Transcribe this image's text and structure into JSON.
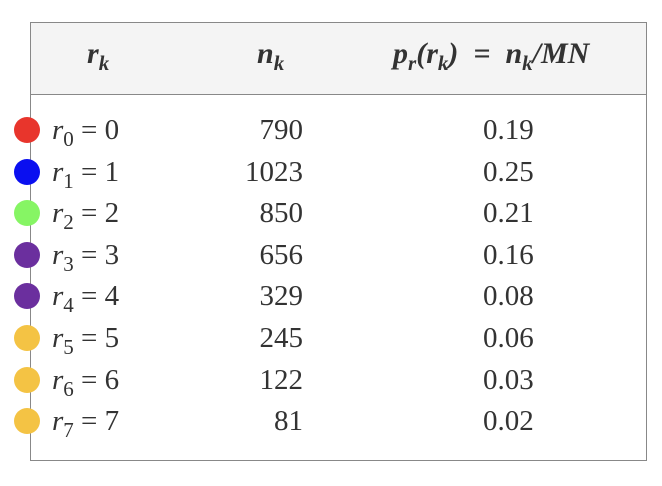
{
  "table": {
    "header": [
      [
        {
          "t": "r"
        },
        {
          "t": "k",
          "sub": true
        }
      ],
      [
        {
          "t": "n"
        },
        {
          "t": "k",
          "sub": true
        }
      ],
      [
        {
          "t": "p"
        },
        {
          "t": "r",
          "sub": true
        },
        {
          "t": "("
        },
        {
          "t": "r"
        },
        {
          "t": "k",
          "sub": true
        },
        {
          "t": ")  =  n"
        },
        {
          "t": "k",
          "sub": true
        },
        {
          "t": "/MN"
        }
      ]
    ],
    "rows": [
      {
        "color": "#e8352c",
        "symbol": "r",
        "index": "0",
        "relation": "=",
        "level": "0",
        "count": "790",
        "probability": "0.19"
      },
      {
        "color": "#0a0ff0",
        "symbol": "r",
        "index": "1",
        "relation": "=",
        "level": "1",
        "count": "1023",
        "probability": "0.25"
      },
      {
        "color": "#86f564",
        "symbol": "r",
        "index": "2",
        "relation": "=",
        "level": "2",
        "count": "850",
        "probability": "0.21"
      },
      {
        "color": "#6b2f9e",
        "symbol": "r",
        "index": "3",
        "relation": "=",
        "level": "3",
        "count": "656",
        "probability": "0.16"
      },
      {
        "color": "#6b2f9e",
        "symbol": "r",
        "index": "4",
        "relation": "=",
        "level": "4",
        "count": "329",
        "probability": "0.08"
      },
      {
        "color": "#f4c344",
        "symbol": "r",
        "index": "5",
        "relation": "=",
        "level": "5",
        "count": "245",
        "probability": "0.06"
      },
      {
        "color": "#f4c344",
        "symbol": "r",
        "index": "6",
        "relation": "=",
        "level": "6",
        "count": "122",
        "probability": "0.03"
      },
      {
        "color": "#f4c344",
        "symbol": "r",
        "index": "7",
        "relation": "=",
        "level": "7",
        "count": "81",
        "probability": "0.02"
      }
    ]
  }
}
